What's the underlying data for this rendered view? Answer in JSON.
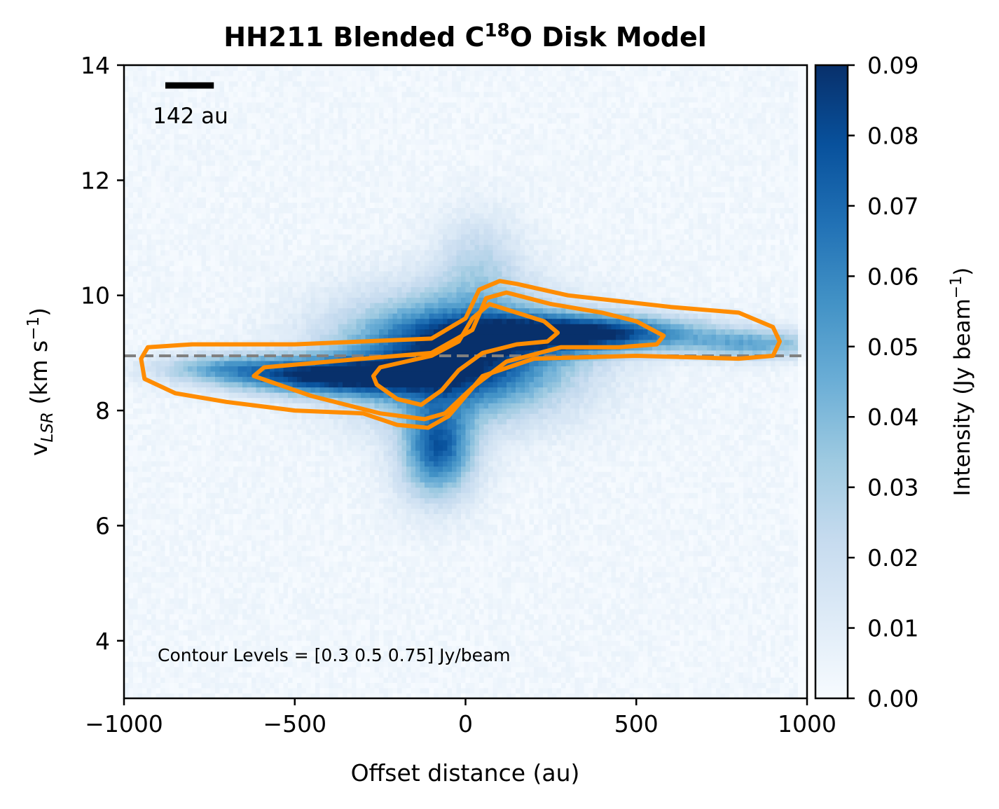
{
  "chart_data": {
    "type": "heatmap",
    "title": {
      "prefix": "HH211 Blended C",
      "superscript": "18",
      "suffix": "O Disk Model"
    },
    "xlabel": "Offset distance (au)",
    "ylabel": {
      "v": "v",
      "sub": "LSR",
      "unit_open": " (km s",
      "unit_sup": "−1",
      "unit_close": ")"
    },
    "xlim": [
      -1000,
      1000
    ],
    "ylim": [
      3,
      14
    ],
    "x_ticks": [
      {
        "value": -1000,
        "label": "−1000"
      },
      {
        "value": -500,
        "label": "−500"
      },
      {
        "value": 0,
        "label": "0"
      },
      {
        "value": 500,
        "label": "500"
      },
      {
        "value": 1000,
        "label": "1000"
      }
    ],
    "y_ticks": [
      {
        "value": 4,
        "label": "4"
      },
      {
        "value": 6,
        "label": "6"
      },
      {
        "value": 8,
        "label": "8"
      },
      {
        "value": 10,
        "label": "10"
      },
      {
        "value": 12,
        "label": "12"
      },
      {
        "value": 14,
        "label": "14"
      }
    ],
    "colorbar": {
      "label_prefix": "Intensity (Jy beam",
      "label_sup": "−1",
      "label_suffix": ")",
      "colormap": "Blues",
      "range": [
        0.0,
        0.09
      ],
      "ticks": [
        {
          "value": 0.0,
          "label": "0.00"
        },
        {
          "value": 0.01,
          "label": "0.01"
        },
        {
          "value": 0.02,
          "label": "0.02"
        },
        {
          "value": 0.03,
          "label": "0.03"
        },
        {
          "value": 0.04,
          "label": "0.04"
        },
        {
          "value": 0.05,
          "label": "0.05"
        },
        {
          "value": 0.06,
          "label": "0.06"
        },
        {
          "value": 0.07,
          "label": "0.07"
        },
        {
          "value": 0.08,
          "label": "0.08"
        },
        {
          "value": 0.09,
          "label": "0.09"
        }
      ],
      "colors": [
        "#f7fbff",
        "#deebf7",
        "#c6dbef",
        "#9ecae1",
        "#6baed6",
        "#4292c6",
        "#2171b5",
        "#08519c",
        "#08306b"
      ]
    },
    "systemic_velocity": {
      "value": 8.95,
      "style": "dashed",
      "color": "#808080"
    },
    "emission_features": [
      {
        "x": -30,
        "v": 8.95,
        "peak": 0.09,
        "sigma_x": 230,
        "sigma_v": 0.7
      },
      {
        "x": 350,
        "v": 9.35,
        "peak": 0.085,
        "sigma_x": 230,
        "sigma_v": 0.22
      },
      {
        "x": -400,
        "v": 8.6,
        "peak": 0.075,
        "sigma_x": 200,
        "sigma_v": 0.22
      },
      {
        "x": 850,
        "v": 9.15,
        "peak": 0.04,
        "sigma_x": 140,
        "sigma_v": 0.18
      },
      {
        "x": -700,
        "v": 8.75,
        "peak": 0.035,
        "sigma_x": 150,
        "sigma_v": 0.18
      },
      {
        "x": -80,
        "v": 7.4,
        "peak": 0.06,
        "sigma_x": 70,
        "sigma_v": 0.5
      },
      {
        "x": 40,
        "v": 10.6,
        "peak": 0.02,
        "sigma_x": 90,
        "sigma_v": 0.6
      },
      {
        "x": -90,
        "v": 6.8,
        "peak": 0.015,
        "sigma_x": 90,
        "sigma_v": 0.5
      }
    ],
    "contours": {
      "color": "#ff8c00",
      "levels_text": "Contour Levels = [0.3  0.5  0.75] Jy/beam",
      "paths": [
        {
          "level": 0.3,
          "points": [
            [
              -950,
              8.9
            ],
            [
              -930,
              9.1
            ],
            [
              -800,
              9.15
            ],
            [
              -500,
              9.15
            ],
            [
              -300,
              9.2
            ],
            [
              -100,
              9.25
            ],
            [
              0,
              9.6
            ],
            [
              40,
              10.1
            ],
            [
              100,
              10.25
            ],
            [
              150,
              10.2
            ],
            [
              300,
              10.0
            ],
            [
              600,
              9.8
            ],
            [
              800,
              9.7
            ],
            [
              900,
              9.45
            ],
            [
              920,
              9.2
            ],
            [
              900,
              8.95
            ],
            [
              800,
              8.9
            ],
            [
              500,
              8.95
            ],
            [
              200,
              8.9
            ],
            [
              50,
              8.6
            ],
            [
              -50,
              7.9
            ],
            [
              -110,
              7.7
            ],
            [
              -200,
              7.75
            ],
            [
              -300,
              7.95
            ],
            [
              -500,
              8.0
            ],
            [
              -700,
              8.15
            ],
            [
              -850,
              8.3
            ],
            [
              -940,
              8.55
            ],
            [
              -950,
              8.9
            ]
          ]
        },
        {
          "level": 0.5,
          "points": [
            [
              -620,
              8.6
            ],
            [
              -590,
              8.75
            ],
            [
              -300,
              8.9
            ],
            [
              -100,
              9.0
            ],
            [
              20,
              9.4
            ],
            [
              60,
              9.95
            ],
            [
              120,
              10.05
            ],
            [
              250,
              9.85
            ],
            [
              400,
              9.7
            ],
            [
              500,
              9.55
            ],
            [
              580,
              9.3
            ],
            [
              560,
              9.15
            ],
            [
              450,
              9.1
            ],
            [
              280,
              9.1
            ],
            [
              120,
              8.85
            ],
            [
              20,
              8.4
            ],
            [
              -60,
              7.95
            ],
            [
              -120,
              7.85
            ],
            [
              -250,
              7.95
            ],
            [
              -450,
              8.25
            ],
            [
              -620,
              8.6
            ]
          ]
        },
        {
          "level": 0.75,
          "points": [
            [
              -270,
              8.6
            ],
            [
              -250,
              8.75
            ],
            [
              -100,
              8.95
            ],
            [
              -20,
              9.2
            ],
            [
              20,
              9.6
            ],
            [
              70,
              9.85
            ],
            [
              150,
              9.7
            ],
            [
              230,
              9.55
            ],
            [
              270,
              9.35
            ],
            [
              240,
              9.2
            ],
            [
              150,
              9.15
            ],
            [
              50,
              9.0
            ],
            [
              -20,
              8.7
            ],
            [
              -70,
              8.35
            ],
            [
              -130,
              8.1
            ],
            [
              -200,
              8.2
            ],
            [
              -260,
              8.45
            ],
            [
              -270,
              8.6
            ]
          ]
        }
      ]
    },
    "scale_bar": {
      "length": 142,
      "label": "142 au"
    }
  }
}
